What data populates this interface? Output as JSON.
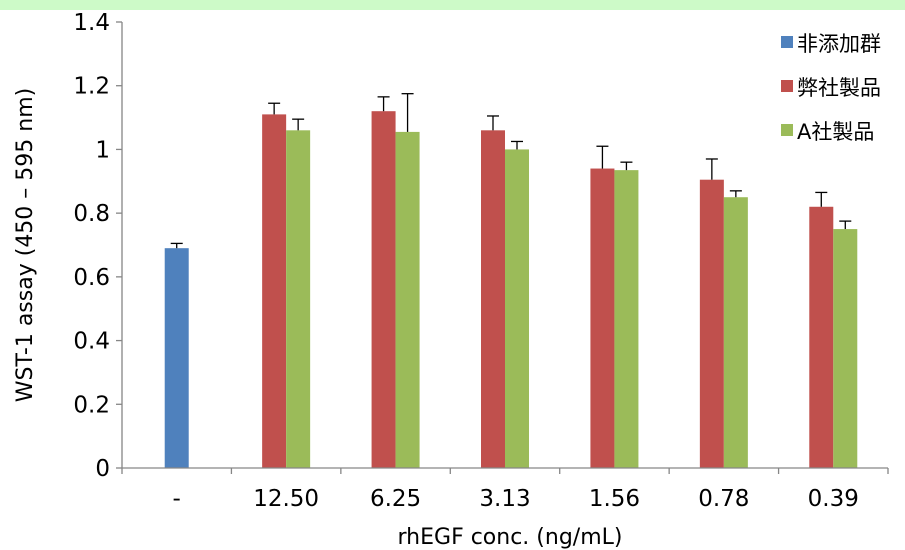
{
  "chart_data": {
    "type": "bar",
    "categories": [
      "-",
      "12.50",
      "6.25",
      "3.13",
      "1.56",
      "0.78",
      "0.39"
    ],
    "xlabel": "rhEGF conc. (ng/mL)",
    "ylabel": "WST-1 assay (450 – 595 nm)",
    "ylim": [
      0,
      1.4
    ],
    "yticks": [
      "0",
      "0.2",
      "0.4",
      "0.6",
      "0.8",
      "1",
      "1.2",
      "1.4"
    ],
    "grid": false,
    "legend_position": "top-right",
    "series": [
      {
        "name": "非添加群",
        "color": "#4f81bd",
        "values": [
          0.69,
          null,
          null,
          null,
          null,
          null,
          null
        ],
        "errors": [
          0.015,
          null,
          null,
          null,
          null,
          null,
          null
        ]
      },
      {
        "name": "弊社製品",
        "color": "#c0504d",
        "values": [
          null,
          1.11,
          1.12,
          1.06,
          0.94,
          0.905,
          0.82
        ],
        "errors": [
          null,
          0.035,
          0.045,
          0.045,
          0.07,
          0.065,
          0.045
        ]
      },
      {
        "name": "A社製品",
        "color": "#9bbb59",
        "values": [
          null,
          1.06,
          1.055,
          1.0,
          0.935,
          0.85,
          0.75
        ],
        "errors": [
          null,
          0.035,
          0.12,
          0.025,
          0.025,
          0.02,
          0.025
        ]
      }
    ]
  }
}
